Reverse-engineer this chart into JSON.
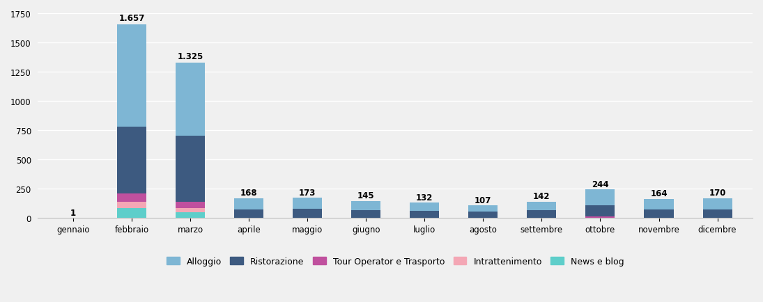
{
  "categories": [
    "gennaio",
    "febbraio",
    "marzo",
    "aprile",
    "maggio",
    "giugno",
    "luglio",
    "agosto",
    "settembre",
    "ottobre",
    "novembre",
    "dicembre"
  ],
  "totals_labels": [
    "1",
    "1.657",
    "1.325",
    "168",
    "173",
    "145",
    "132",
    "107",
    "142",
    "244",
    "164",
    "170"
  ],
  "series": {
    "News e blog": [
      1,
      87,
      50,
      0,
      0,
      0,
      0,
      0,
      0,
      0,
      0,
      0
    ],
    "Intrattenimento": [
      0,
      55,
      35,
      0,
      0,
      0,
      0,
      0,
      0,
      0,
      0,
      0
    ],
    "Tour Operator e Trasporto": [
      0,
      70,
      55,
      5,
      5,
      5,
      3,
      3,
      3,
      12,
      3,
      3
    ],
    "Ristorazione": [
      0,
      570,
      565,
      68,
      73,
      60,
      60,
      55,
      65,
      95,
      72,
      72
    ],
    "Alloggio": [
      0,
      875,
      620,
      95,
      95,
      80,
      69,
      49,
      74,
      137,
      89,
      95
    ]
  },
  "colors": {
    "News e blog": "#5ececa",
    "Intrattenimento": "#f4a7b5",
    "Tour Operator e Trasporto": "#c0509e",
    "Ristorazione": "#3d5a80",
    "Alloggio": "#7eb6d4"
  },
  "legend_order": [
    "Alloggio",
    "Ristorazione",
    "Tour Operator e Trasporto",
    "Intrattenimento",
    "News e blog"
  ],
  "ylim": [
    0,
    1750
  ],
  "yticks": [
    0,
    250,
    500,
    750,
    1000,
    1250,
    1500,
    1750
  ],
  "background_color": "#f0f0f0",
  "grid_color": "#ffffff",
  "tick_fontsize": 8.5
}
